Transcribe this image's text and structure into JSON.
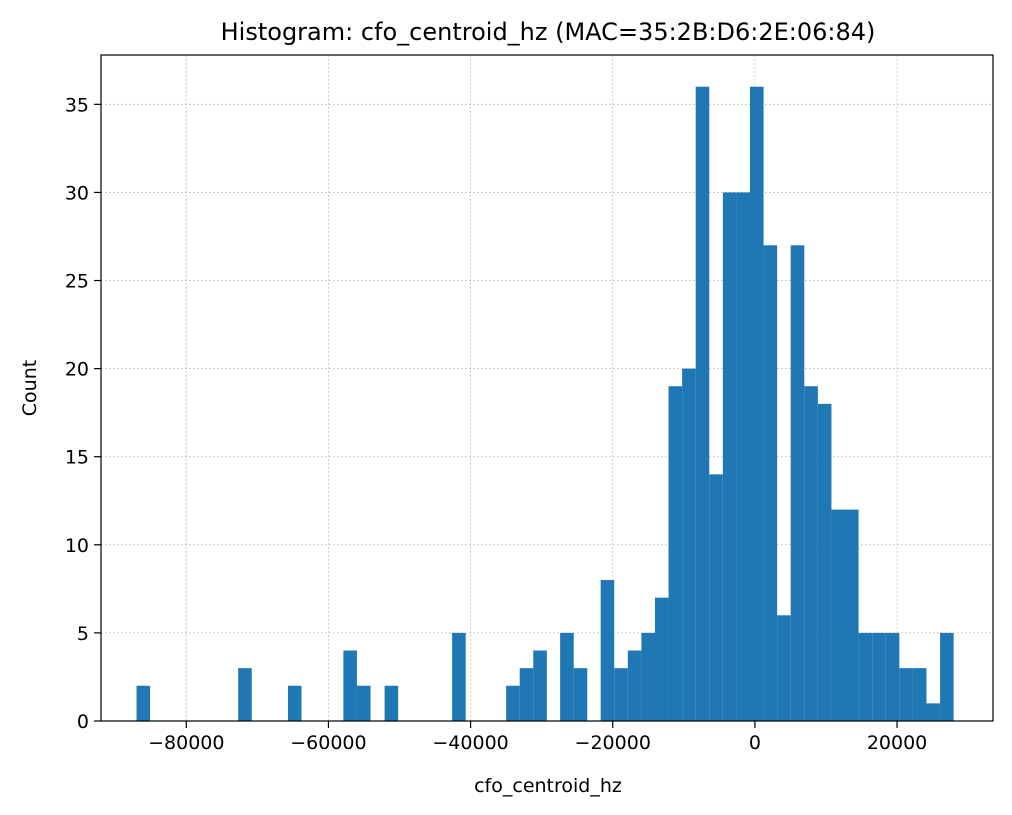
{
  "chart_data": {
    "type": "bar",
    "title": "Histogram: cfo_centroid_hz (MAC=35:2B:D6:2E:06:84)",
    "xlabel": "cfo_centroid_hz",
    "ylabel": "Count",
    "xlim": [
      -92000,
      33500
    ],
    "ylim": [
      0,
      37.8
    ],
    "xticks": [
      -80000,
      -60000,
      -40000,
      -20000,
      0,
      20000
    ],
    "xtick_labels": [
      "−80000",
      "−60000",
      "−40000",
      "−20000",
      "0",
      "20000"
    ],
    "yticks": [
      0,
      5,
      10,
      15,
      20,
      25,
      30,
      35
    ],
    "ytick_labels": [
      "0",
      "5",
      "10",
      "15",
      "20",
      "25",
      "30",
      "35"
    ],
    "grid": true,
    "bar_color": "#1f77b4",
    "bins": [
      {
        "x0": -87000,
        "x1": -85090,
        "count": 2
      },
      {
        "x0": -72700,
        "x1": -70790,
        "count": 3
      },
      {
        "x0": -65700,
        "x1": -63790,
        "count": 2
      },
      {
        "x0": -57900,
        "x1": -55990,
        "count": 4
      },
      {
        "x0": -55990,
        "x1": -54080,
        "count": 2
      },
      {
        "x0": -52100,
        "x1": -50190,
        "count": 2
      },
      {
        "x0": -42600,
        "x1": -40690,
        "count": 5
      },
      {
        "x0": -35000,
        "x1": -33090,
        "count": 2
      },
      {
        "x0": -33090,
        "x1": -31180,
        "count": 3
      },
      {
        "x0": -31180,
        "x1": -29270,
        "count": 4
      },
      {
        "x0": -27400,
        "x1": -25490,
        "count": 5
      },
      {
        "x0": -25490,
        "x1": -23580,
        "count": 3
      },
      {
        "x0": -21700,
        "x1": -19790,
        "count": 8
      },
      {
        "x0": -19790,
        "x1": -17880,
        "count": 3
      },
      {
        "x0": -17880,
        "x1": -15970,
        "count": 4
      },
      {
        "x0": -15970,
        "x1": -14060,
        "count": 5
      },
      {
        "x0": -14060,
        "x1": -12150,
        "count": 7
      },
      {
        "x0": -12150,
        "x1": -10240,
        "count": 19
      },
      {
        "x0": -10240,
        "x1": -8330,
        "count": 20
      },
      {
        "x0": -8330,
        "x1": -6420,
        "count": 36
      },
      {
        "x0": -6420,
        "x1": -4510,
        "count": 14
      },
      {
        "x0": -4510,
        "x1": -2600,
        "count": 30
      },
      {
        "x0": -2600,
        "x1": -690,
        "count": 30
      },
      {
        "x0": -690,
        "x1": 1220,
        "count": 36
      },
      {
        "x0": 1220,
        "x1": 3130,
        "count": 27
      },
      {
        "x0": 3130,
        "x1": 5040,
        "count": 6
      },
      {
        "x0": 5040,
        "x1": 6950,
        "count": 27
      },
      {
        "x0": 6950,
        "x1": 8860,
        "count": 19
      },
      {
        "x0": 8860,
        "x1": 10770,
        "count": 18
      },
      {
        "x0": 10770,
        "x1": 12680,
        "count": 12
      },
      {
        "x0": 12680,
        "x1": 14590,
        "count": 12
      },
      {
        "x0": 14590,
        "x1": 16500,
        "count": 5
      },
      {
        "x0": 16500,
        "x1": 18410,
        "count": 5
      },
      {
        "x0": 18410,
        "x1": 20320,
        "count": 5
      },
      {
        "x0": 20320,
        "x1": 22230,
        "count": 3
      },
      {
        "x0": 22230,
        "x1": 24140,
        "count": 3
      },
      {
        "x0": 24140,
        "x1": 26050,
        "count": 1
      },
      {
        "x0": 26050,
        "x1": 27960,
        "count": 5
      }
    ]
  }
}
